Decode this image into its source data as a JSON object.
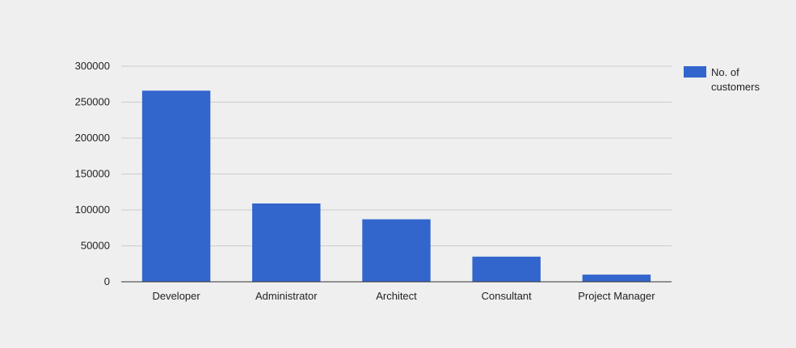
{
  "chart_data": {
    "type": "bar",
    "categories": [
      "Developer",
      "Administrator",
      "Architect",
      "Consultant",
      "Project Manager"
    ],
    "series": [
      {
        "name": "No. of customers",
        "values": [
          266000,
          109000,
          87000,
          35000,
          10000
        ]
      }
    ],
    "title": "",
    "xlabel": "",
    "ylabel": "",
    "ylim": [
      0,
      300000
    ],
    "yticks": [
      "0",
      "50000",
      "100000",
      "150000",
      "200000",
      "250000",
      "300000"
    ],
    "grid": true,
    "legend": {
      "position": "right",
      "lines": [
        "No. of",
        "customers"
      ]
    },
    "colors": {
      "bar": "#3366cc",
      "grid": "#cccccc",
      "axis": "#333333",
      "background": "#efefef"
    }
  }
}
